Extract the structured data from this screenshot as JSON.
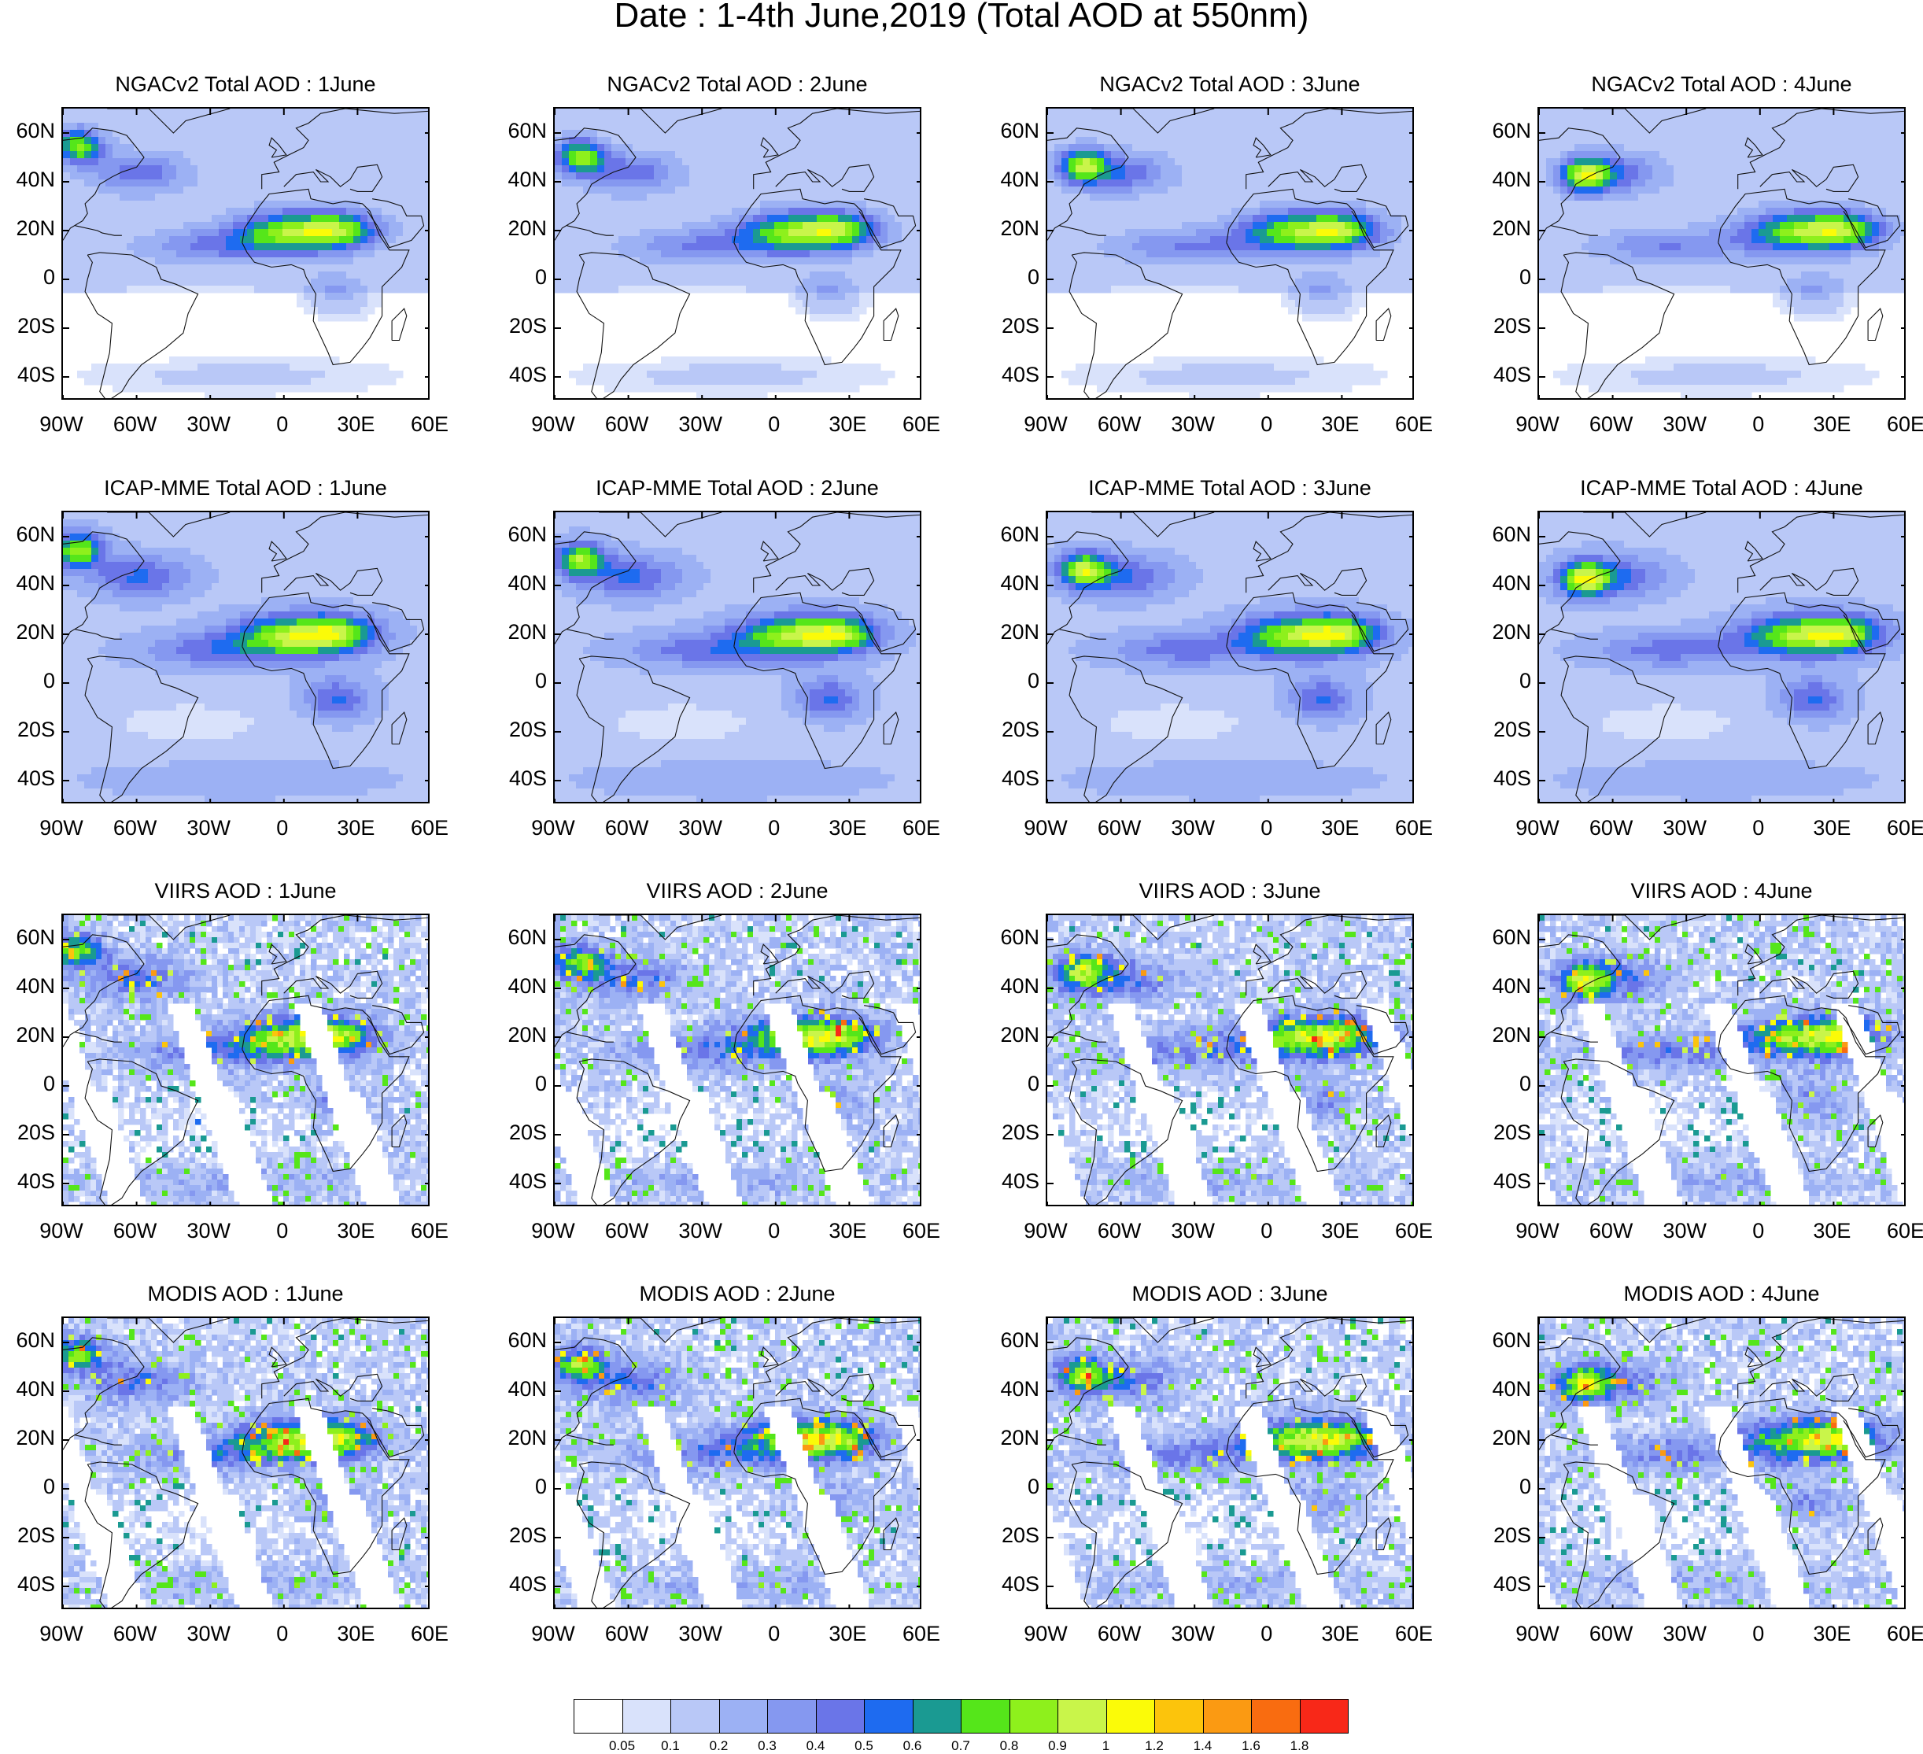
{
  "page": {
    "title": "Date : 1-4th June,2019 (Total AOD at 550nm)"
  },
  "panels": [
    {
      "title": "NGACv2 Total AOD : 1June",
      "source": "NGACv2",
      "day": 1
    },
    {
      "title": "NGACv2 Total AOD : 2June",
      "source": "NGACv2",
      "day": 2
    },
    {
      "title": "NGACv2 Total AOD : 3June",
      "source": "NGACv2",
      "day": 3
    },
    {
      "title": "NGACv2 Total AOD : 4June",
      "source": "NGACv2",
      "day": 4
    },
    {
      "title": "ICAP-MME Total AOD : 1June",
      "source": "ICAP-MME",
      "day": 1
    },
    {
      "title": "ICAP-MME Total AOD : 2June",
      "source": "ICAP-MME",
      "day": 2
    },
    {
      "title": "ICAP-MME Total AOD : 3June",
      "source": "ICAP-MME",
      "day": 3
    },
    {
      "title": "ICAP-MME Total AOD : 4June",
      "source": "ICAP-MME",
      "day": 4
    },
    {
      "title": "VIIRS AOD : 1June",
      "source": "VIIRS",
      "day": 1
    },
    {
      "title": "VIIRS AOD : 2June",
      "source": "VIIRS",
      "day": 2
    },
    {
      "title": "VIIRS AOD : 3June",
      "source": "VIIRS",
      "day": 3
    },
    {
      "title": "VIIRS AOD : 4June",
      "source": "VIIRS",
      "day": 4
    },
    {
      "title": "MODIS AOD : 1June",
      "source": "MODIS",
      "day": 1
    },
    {
      "title": "MODIS AOD : 2June",
      "source": "MODIS",
      "day": 2
    },
    {
      "title": "MODIS AOD : 3June",
      "source": "MODIS",
      "day": 3
    },
    {
      "title": "MODIS AOD : 4June",
      "source": "MODIS",
      "day": 4
    }
  ],
  "axes": {
    "lat_labels": [
      "60N",
      "40N",
      "20N",
      "0",
      "20S",
      "40S"
    ],
    "lat_values": [
      60,
      40,
      20,
      0,
      -20,
      -40
    ],
    "lon_labels": [
      "90W",
      "60W",
      "30W",
      "0",
      "30E",
      "60E"
    ],
    "lon_values": [
      -90,
      -60,
      -30,
      0,
      30,
      60
    ],
    "lat_range": [
      -50,
      70
    ],
    "lon_range": [
      -90,
      60
    ]
  },
  "colorbar": {
    "labels": [
      "0.05",
      "0.1",
      "0.2",
      "0.3",
      "0.4",
      "0.5",
      "0.6",
      "0.7",
      "0.8",
      "0.9",
      "1",
      "1.2",
      "1.4",
      "1.6",
      "1.8"
    ],
    "colors": [
      "#ffffff",
      "#d9e2fb",
      "#b9c8f7",
      "#9cb1f4",
      "#8598f0",
      "#6a75e8",
      "#1e6bf0",
      "#1a9a92",
      "#55e61a",
      "#8ef01c",
      "#c9f54a",
      "#fbfb08",
      "#fcc40c",
      "#fb9a12",
      "#f96c10",
      "#f82818"
    ]
  }
}
